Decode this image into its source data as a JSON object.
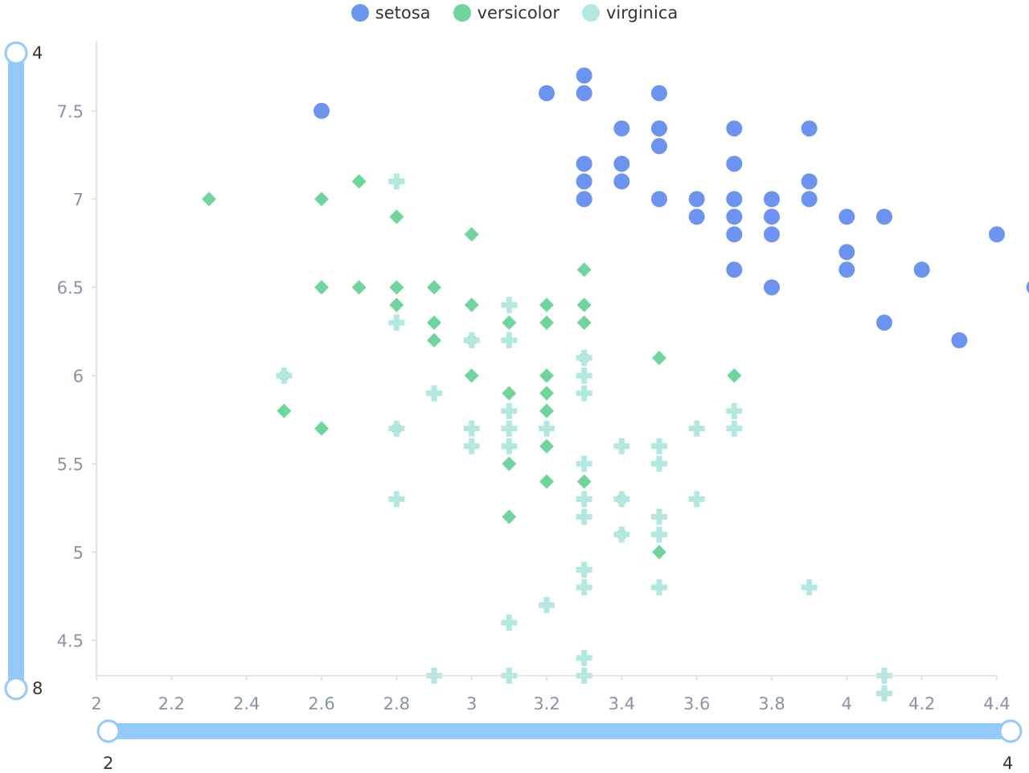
{
  "colors": {
    "setosa": "#6b93ef",
    "versicolor": "#6fd59c",
    "virginica": "#b3e8e0",
    "slider": "#93c9fb",
    "axis": "#d9dde3",
    "tick_text": "#8a93a6"
  },
  "legend": [
    {
      "name": "setosa",
      "color": "#6b93ef",
      "icon": "circle"
    },
    {
      "name": "versicolor",
      "color": "#6fd59c",
      "icon": "circle"
    },
    {
      "name": "virginica",
      "color": "#b3e8e0",
      "icon": "circle"
    }
  ],
  "x_slider": {
    "min_label": "2",
    "max_label": "4",
    "start": 2,
    "end": 4
  },
  "y_slider": {
    "top_label": "4",
    "bottom_label": "8",
    "start": 4,
    "end": 8
  },
  "chart_data": {
    "type": "scatter",
    "title": "",
    "xlabel": "",
    "ylabel": "",
    "xlim": [
      2,
      4.4
    ],
    "ylim": [
      4.3,
      7.9
    ],
    "x_ticks": [
      "2",
      "2.2",
      "2.4",
      "2.6",
      "2.8",
      "3",
      "3.2",
      "3.4",
      "3.6",
      "3.8",
      "4",
      "4.2",
      "4.4"
    ],
    "y_ticks": [
      "4.5",
      "5",
      "5.5",
      "6",
      "6.5",
      "7",
      "7.5"
    ],
    "grid": false,
    "legend_position": "top-center",
    "series": [
      {
        "name": "setosa",
        "marker": "circle",
        "points": [
          [
            2.6,
            7.5
          ],
          [
            3.2,
            7.6
          ],
          [
            3.3,
            7.7
          ],
          [
            3.3,
            7.6
          ],
          [
            3.5,
            7.6
          ],
          [
            3.4,
            7.4
          ],
          [
            3.5,
            7.4
          ],
          [
            3.7,
            7.4
          ],
          [
            3.9,
            7.4
          ],
          [
            3.5,
            7.3
          ],
          [
            3.3,
            7.2
          ],
          [
            3.4,
            7.2
          ],
          [
            3.7,
            7.2
          ],
          [
            3.3,
            7.1
          ],
          [
            3.4,
            7.1
          ],
          [
            3.9,
            7.1
          ],
          [
            3.3,
            7.0
          ],
          [
            3.5,
            7.0
          ],
          [
            3.6,
            7.0
          ],
          [
            3.7,
            7.0
          ],
          [
            3.8,
            7.0
          ],
          [
            3.9,
            7.0
          ],
          [
            3.6,
            6.9
          ],
          [
            3.7,
            6.9
          ],
          [
            3.8,
            6.9
          ],
          [
            4.0,
            6.9
          ],
          [
            4.1,
            6.9
          ],
          [
            3.7,
            6.8
          ],
          [
            3.8,
            6.8
          ],
          [
            4.4,
            6.8
          ],
          [
            4.0,
            6.7
          ],
          [
            3.7,
            6.6
          ],
          [
            4.0,
            6.6
          ],
          [
            4.2,
            6.6
          ],
          [
            3.8,
            6.5
          ],
          [
            4.5,
            6.5
          ],
          [
            4.1,
            6.3
          ],
          [
            4.3,
            6.2
          ]
        ]
      },
      {
        "name": "versicolor",
        "marker": "diamond",
        "points": [
          [
            2.3,
            7.0
          ],
          [
            2.6,
            7.0
          ],
          [
            2.7,
            7.1
          ],
          [
            2.8,
            6.9
          ],
          [
            3.0,
            6.8
          ],
          [
            3.3,
            6.6
          ],
          [
            2.6,
            6.5
          ],
          [
            2.7,
            6.5
          ],
          [
            2.8,
            6.5
          ],
          [
            2.9,
            6.5
          ],
          [
            2.8,
            6.4
          ],
          [
            3.0,
            6.4
          ],
          [
            3.2,
            6.4
          ],
          [
            3.3,
            6.4
          ],
          [
            2.9,
            6.3
          ],
          [
            3.1,
            6.3
          ],
          [
            3.2,
            6.3
          ],
          [
            3.3,
            6.3
          ],
          [
            2.9,
            6.2
          ],
          [
            3.0,
            6.2
          ],
          [
            3.3,
            6.1
          ],
          [
            3.5,
            6.1
          ],
          [
            2.5,
            6.0
          ],
          [
            3.0,
            6.0
          ],
          [
            3.2,
            6.0
          ],
          [
            3.7,
            6.0
          ],
          [
            3.1,
            5.9
          ],
          [
            3.2,
            5.9
          ],
          [
            2.5,
            5.8
          ],
          [
            3.2,
            5.8
          ],
          [
            2.6,
            5.7
          ],
          [
            2.8,
            5.7
          ],
          [
            3.2,
            5.6
          ],
          [
            3.1,
            5.5
          ],
          [
            3.2,
            5.4
          ],
          [
            3.3,
            5.4
          ],
          [
            3.4,
            5.3
          ],
          [
            3.1,
            5.2
          ],
          [
            3.4,
            5.1
          ],
          [
            3.5,
            5.0
          ]
        ]
      },
      {
        "name": "virginica",
        "marker": "cross",
        "points": [
          [
            2.8,
            7.1
          ],
          [
            3.1,
            6.4
          ],
          [
            2.8,
            6.3
          ],
          [
            3.0,
            6.2
          ],
          [
            3.1,
            6.2
          ],
          [
            3.3,
            6.1
          ],
          [
            2.5,
            6.0
          ],
          [
            3.3,
            6.0
          ],
          [
            2.9,
            5.9
          ],
          [
            3.3,
            5.9
          ],
          [
            3.1,
            5.8
          ],
          [
            3.7,
            5.8
          ],
          [
            2.8,
            5.7
          ],
          [
            3.0,
            5.7
          ],
          [
            3.1,
            5.7
          ],
          [
            3.2,
            5.7
          ],
          [
            3.6,
            5.7
          ],
          [
            3.7,
            5.7
          ],
          [
            3.0,
            5.6
          ],
          [
            3.1,
            5.6
          ],
          [
            3.4,
            5.6
          ],
          [
            3.5,
            5.6
          ],
          [
            3.3,
            5.5
          ],
          [
            3.5,
            5.5
          ],
          [
            2.8,
            5.3
          ],
          [
            3.3,
            5.3
          ],
          [
            3.4,
            5.3
          ],
          [
            3.6,
            5.3
          ],
          [
            3.3,
            5.2
          ],
          [
            3.5,
            5.2
          ],
          [
            3.4,
            5.1
          ],
          [
            3.5,
            5.1
          ],
          [
            3.3,
            4.9
          ],
          [
            3.3,
            4.8
          ],
          [
            3.5,
            4.8
          ],
          [
            3.9,
            4.8
          ],
          [
            3.2,
            4.7
          ],
          [
            3.1,
            4.6
          ],
          [
            3.3,
            4.4
          ],
          [
            2.9,
            4.3
          ],
          [
            3.1,
            4.3
          ],
          [
            3.3,
            4.3
          ],
          [
            4.1,
            4.3
          ],
          [
            4.1,
            4.2
          ]
        ]
      }
    ]
  }
}
